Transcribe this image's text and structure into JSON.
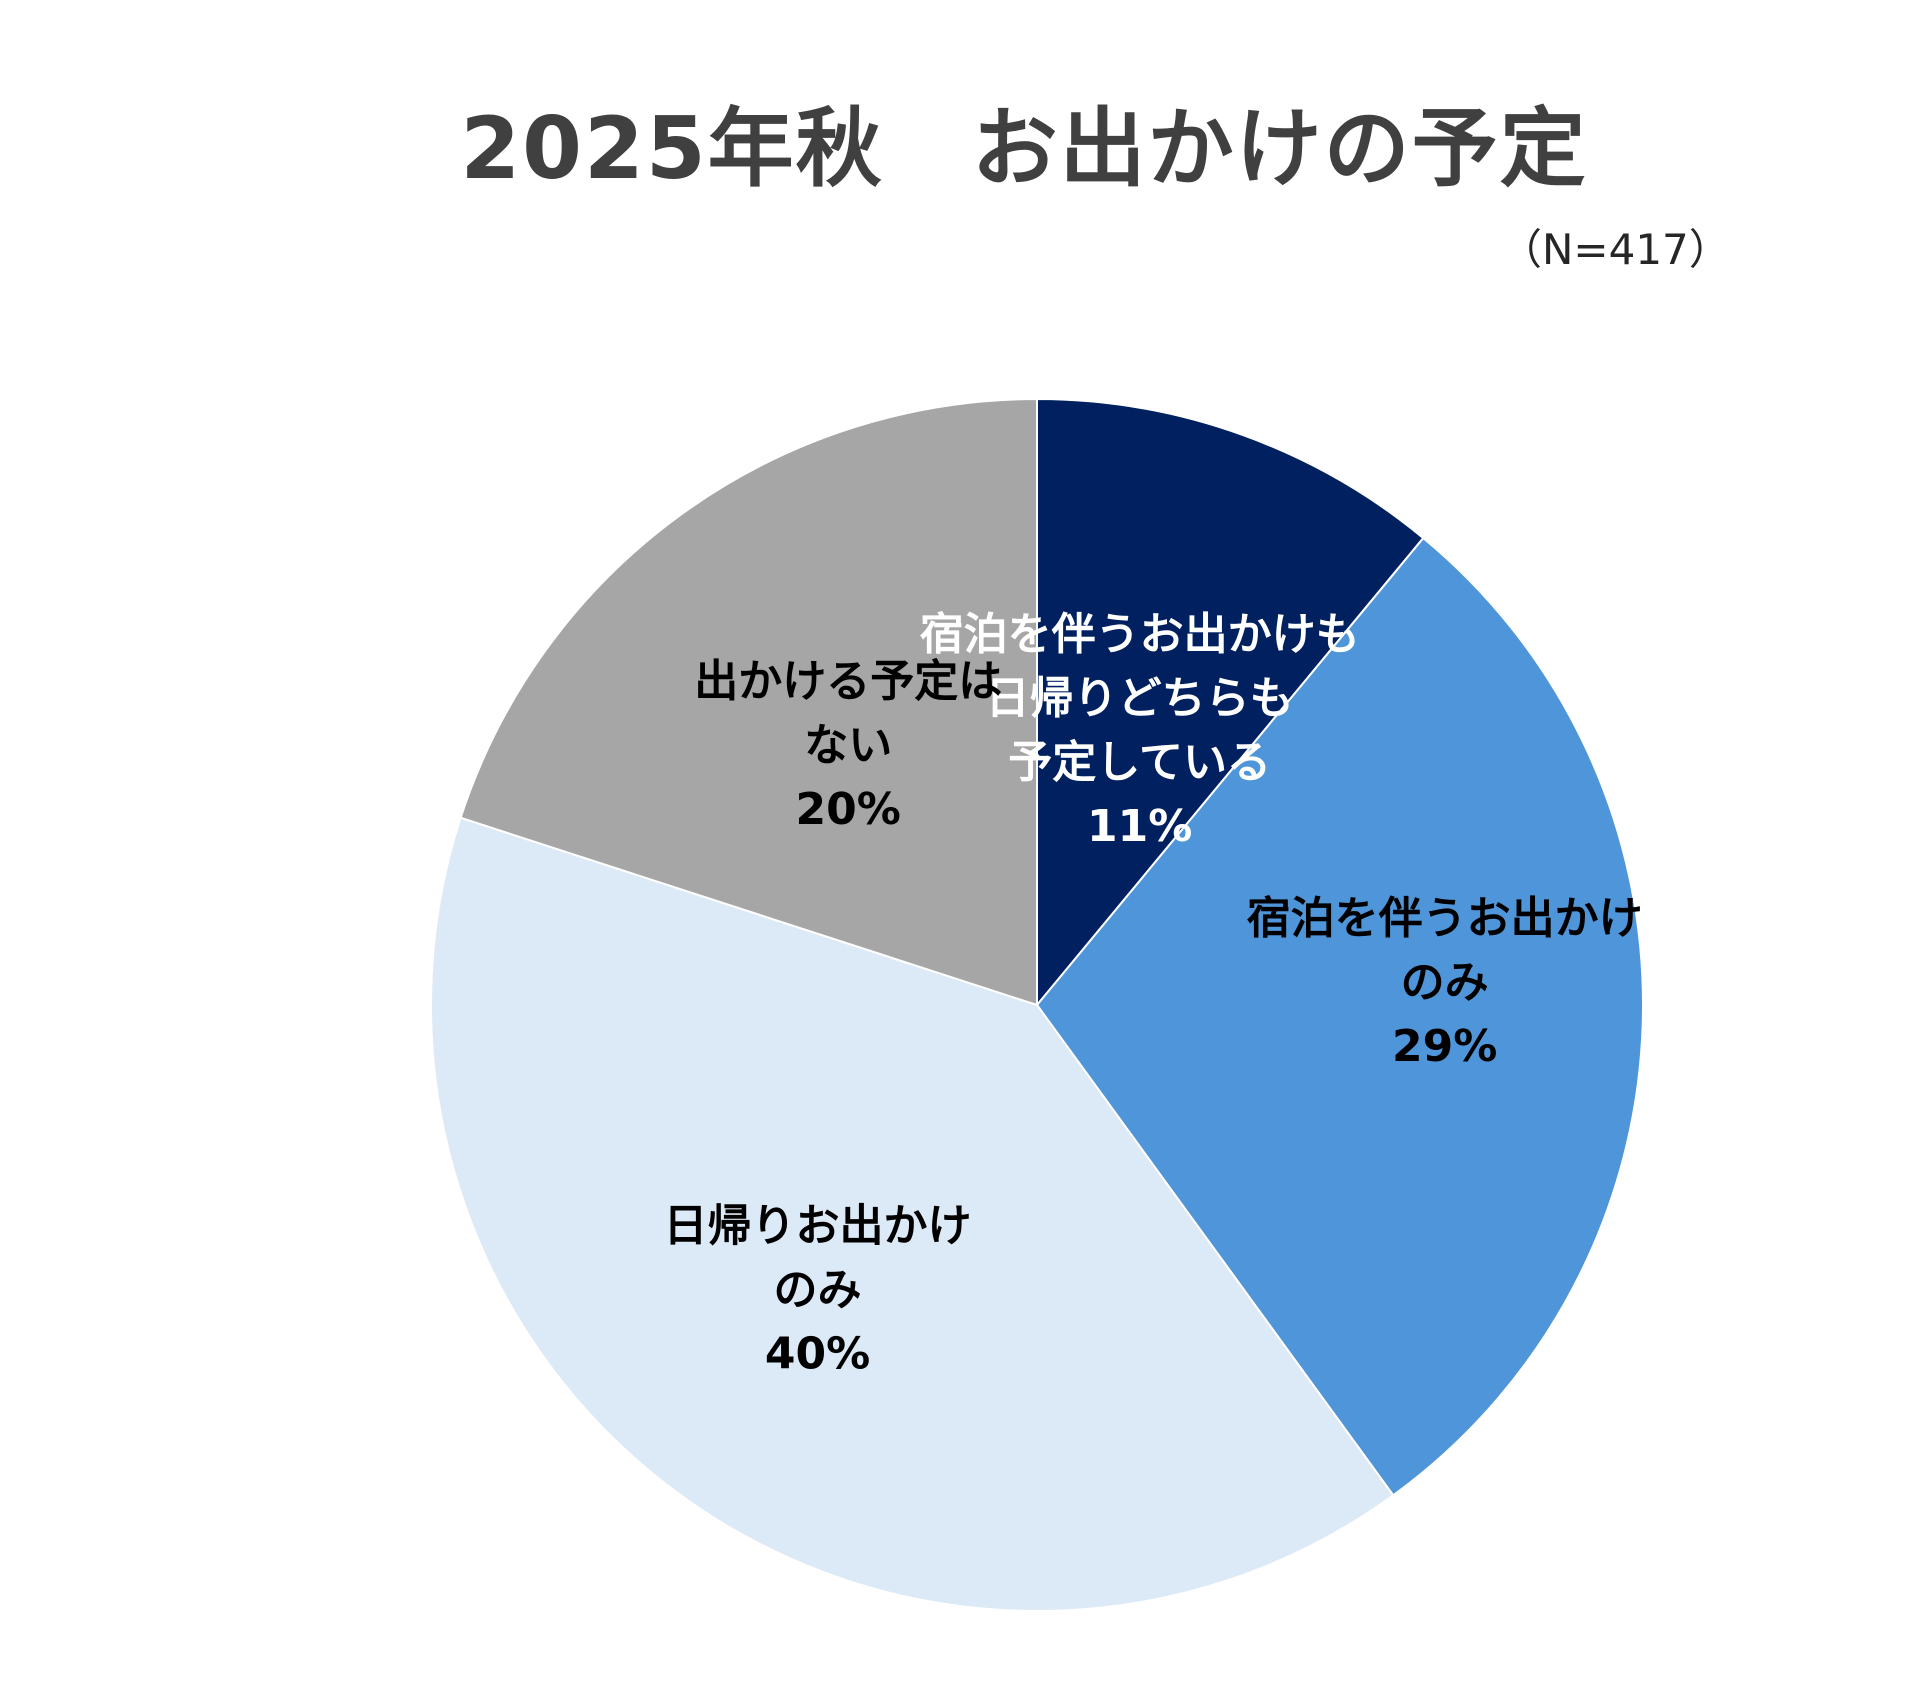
{
  "chart_data": {
    "type": "pie",
    "title": "2025年秋　お出かけの予定",
    "note": "（N=417）",
    "start_angle_deg": 0,
    "direction": "clockwise",
    "slices": [
      {
        "label_lines": [
          "宿泊を伴うお出かけも",
          "日帰りどちらも",
          "予定している"
        ],
        "value": 11,
        "value_label": "11%",
        "color": "#002060",
        "text_color": "#ffffff"
      },
      {
        "label_lines": [
          "宿泊を伴うお出かけ",
          "のみ"
        ],
        "value": 29,
        "value_label": "29%",
        "color": "#4f95d9",
        "text_color": "#000000"
      },
      {
        "label_lines": [
          "日帰りお出かけ",
          "のみ"
        ],
        "value": 40,
        "value_label": "40%",
        "color": "#dce9f6",
        "text_color": "#000000"
      },
      {
        "label_lines": [
          "出かける予定は",
          "ない"
        ],
        "value": 20,
        "value_label": "20%",
        "color": "#a6a6a6",
        "text_color": "#000000"
      }
    ]
  }
}
